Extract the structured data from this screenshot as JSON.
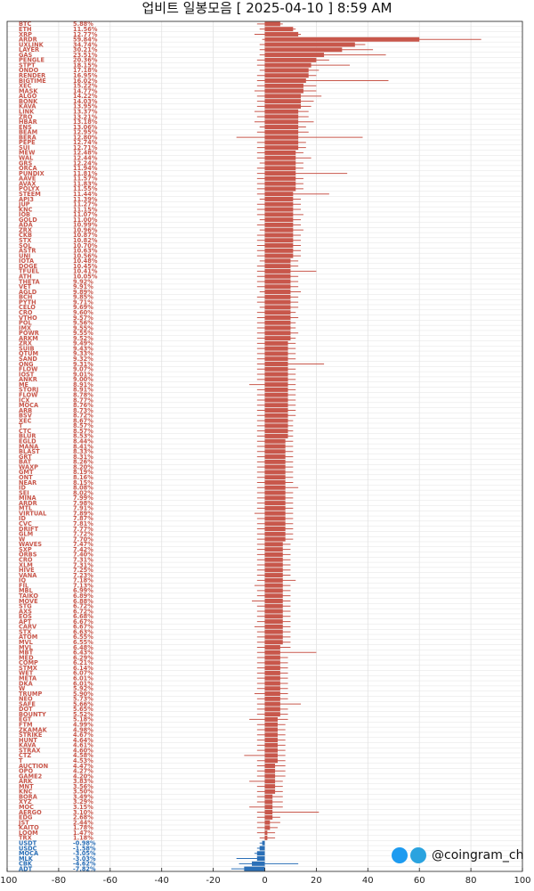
{
  "title": "업비트 일봉모음 [ 2025-04-10 ]  8:59 AM",
  "watermark": {
    "handle": "@coingram_ch",
    "icons": [
      "twitter-icon",
      "telegram-icon"
    ]
  },
  "colors": {
    "positive": "#c8574b",
    "negative": "#2a6fb7",
    "grid": "#e3e3e3",
    "axis": "#222222"
  },
  "chart_data": {
    "type": "bar",
    "orientation": "horizontal",
    "xlim": [
      -100,
      100
    ],
    "xticks": [
      -100,
      -80,
      -60,
      -40,
      -20,
      0,
      20,
      40,
      60,
      80,
      100
    ],
    "grid": true,
    "fields": [
      "symbol",
      "change_label",
      "body_pct",
      "wick_low_pct",
      "wick_high_pct"
    ],
    "rows": [
      [
        "BTC",
        "5.88%",
        6,
        -3,
        7
      ],
      [
        "ETH",
        "11.56%",
        11,
        -2,
        12
      ],
      [
        "XRP",
        "12.77%",
        13,
        -4,
        14
      ],
      [
        "ARDR",
        "59.84%",
        60,
        -1,
        84
      ],
      [
        "UXLINK",
        "34.74%",
        35,
        -2,
        39
      ],
      [
        "LAYER",
        "30.21%",
        30,
        -2,
        42
      ],
      [
        "GAS",
        "23.51%",
        23,
        -2,
        47
      ],
      [
        "PENGLE",
        "20.36%",
        20,
        -3,
        25
      ],
      [
        "STPT",
        "18.15%",
        18,
        -3,
        33
      ],
      [
        "ONDO",
        "17.18%",
        17,
        -2,
        21
      ],
      [
        "RENDER",
        "16.95%",
        17,
        -3,
        20
      ],
      [
        "BIGTIME",
        "16.02%",
        16,
        -3,
        48
      ],
      [
        "XEC",
        "15.22%",
        15,
        -3,
        20
      ],
      [
        "MASK",
        "14.77%",
        15,
        -4,
        20
      ],
      [
        "ALGO",
        "14.22%",
        14,
        -3,
        22
      ],
      [
        "BONK",
        "14.03%",
        14,
        -3,
        19
      ],
      [
        "KAVA",
        "13.95%",
        14,
        -3,
        18
      ],
      [
        "LINK",
        "13.37%",
        13,
        -4,
        17
      ],
      [
        "ZRO",
        "13.21%",
        13,
        -3,
        17
      ],
      [
        "HBAR",
        "13.18%",
        13,
        -4,
        19
      ],
      [
        "ENS",
        "13.06%",
        13,
        -2,
        16
      ],
      [
        "BEAM",
        "12.95%",
        13,
        -3,
        17
      ],
      [
        "BERA",
        "12.80%",
        13,
        -11,
        38
      ],
      [
        "PEPE",
        "12.74%",
        13,
        -3,
        16
      ],
      [
        "SUI",
        "12.71%",
        13,
        -3,
        16
      ],
      [
        "MEW",
        "12.48%",
        12,
        -3,
        15
      ],
      [
        "WAL",
        "12.44%",
        12,
        -3,
        18
      ],
      [
        "GRS",
        "12.24%",
        12,
        -2,
        15
      ],
      [
        "ORCA",
        "11.94%",
        12,
        -3,
        15
      ],
      [
        "PUNDIX",
        "11.81%",
        12,
        -3,
        32
      ],
      [
        "AAVE",
        "11.57%",
        12,
        -3,
        15
      ],
      [
        "AVAX",
        "11.83%",
        12,
        -3,
        15
      ],
      [
        "POLYX",
        "11.55%",
        12,
        -3,
        15
      ],
      [
        "STEEM",
        "11.44%",
        11,
        -3,
        25
      ],
      [
        "API3",
        "11.39%",
        11,
        -2,
        14
      ],
      [
        "JUP",
        "11.27%",
        11,
        -3,
        14
      ],
      [
        "KNC",
        "11.15%",
        11,
        -3,
        14
      ],
      [
        "IOB",
        "11.07%",
        11,
        -3,
        15
      ],
      [
        "GOLD",
        "11.00%",
        11,
        -2,
        14
      ],
      [
        "ADA",
        "10.99%",
        11,
        -3,
        14
      ],
      [
        "ZRX",
        "10.96%",
        11,
        -2,
        15
      ],
      [
        "CKB",
        "10.87%",
        11,
        -3,
        14
      ],
      [
        "STX",
        "10.82%",
        11,
        -3,
        14
      ],
      [
        "SOL",
        "10.70%",
        11,
        -3,
        14
      ],
      [
        "ASTR",
        "10.63%",
        11,
        -3,
        14
      ],
      [
        "UNI",
        "10.56%",
        11,
        -3,
        14
      ],
      [
        "IOTA",
        "10.48%",
        10,
        -2,
        13
      ],
      [
        "DOGE",
        "10.45%",
        10,
        -3,
        13
      ],
      [
        "TFUEL",
        "10.41%",
        10,
        -3,
        20
      ],
      [
        "ATH",
        "10.05%",
        10,
        -3,
        13
      ],
      [
        "THETA",
        "9.92%",
        10,
        -3,
        13
      ],
      [
        "VET",
        "9.91%",
        10,
        -3,
        13
      ],
      [
        "AGLD",
        "9.89%",
        10,
        -2,
        14
      ],
      [
        "BCH",
        "9.85%",
        10,
        -3,
        13
      ],
      [
        "PYTH",
        "9.71%",
        10,
        -3,
        13
      ],
      [
        "CELO",
        "9.69%",
        10,
        -2,
        13
      ],
      [
        "CRO",
        "9.60%",
        10,
        -3,
        12
      ],
      [
        "VTHO",
        "9.57%",
        10,
        -3,
        13
      ],
      [
        "POL",
        "9.56%",
        10,
        -3,
        12
      ],
      [
        "IMX",
        "9.55%",
        10,
        -3,
        12
      ],
      [
        "POWR",
        "9.55%",
        10,
        -3,
        13
      ],
      [
        "ARKM",
        "9.52%",
        10,
        -3,
        12
      ],
      [
        "ZRX",
        "9.49%",
        9,
        -3,
        12
      ],
      [
        "SUIB",
        "9.43%",
        9,
        -3,
        12
      ],
      [
        "QTUM",
        "9.33%",
        9,
        -3,
        12
      ],
      [
        "SAND",
        "9.32%",
        9,
        -3,
        12
      ],
      [
        "ONG",
        "9.31%",
        9,
        -3,
        23
      ],
      [
        "FLOW",
        "9.07%",
        9,
        -3,
        12
      ],
      [
        "IOST",
        "9.01%",
        9,
        -3,
        12
      ],
      [
        "ANKR",
        "9.00%",
        9,
        -3,
        12
      ],
      [
        "ME",
        "8.91%",
        9,
        -6,
        12
      ],
      [
        "STORJ",
        "8.91%",
        9,
        -3,
        12
      ],
      [
        "FLOW",
        "8.78%",
        9,
        -3,
        12
      ],
      [
        "ICX",
        "8.77%",
        9,
        -3,
        12
      ],
      [
        "MOCA",
        "8.76%",
        9,
        -3,
        12
      ],
      [
        "ARB",
        "8.73%",
        9,
        -3,
        12
      ],
      [
        "BSV",
        "8.72%",
        9,
        -3,
        12
      ],
      [
        "XEC",
        "8.67%",
        9,
        -3,
        11
      ],
      [
        "T",
        "8.57%",
        9,
        -3,
        11
      ],
      [
        "CTC",
        "8.57%",
        9,
        -3,
        11
      ],
      [
        "BLUR",
        "8.53%",
        9,
        -3,
        11
      ],
      [
        "EGLD",
        "8.44%",
        8,
        -3,
        11
      ],
      [
        "MANA",
        "8.41%",
        8,
        -3,
        11
      ],
      [
        "BLAST",
        "8.33%",
        8,
        -3,
        11
      ],
      [
        "GRT",
        "8.31%",
        8,
        -3,
        11
      ],
      [
        "BAT",
        "8.26%",
        8,
        -3,
        11
      ],
      [
        "WAXP",
        "8.20%",
        8,
        -3,
        11
      ],
      [
        "GMT",
        "8.19%",
        8,
        -3,
        11
      ],
      [
        "ONT",
        "8.16%",
        8,
        -3,
        11
      ],
      [
        "NEAR",
        "8.15%",
        8,
        -3,
        11
      ],
      [
        "ID",
        "8.08%",
        8,
        -3,
        13
      ],
      [
        "SEI",
        "8.02%",
        8,
        -3,
        11
      ],
      [
        "MINA",
        "7.99%",
        8,
        -3,
        11
      ],
      [
        "ARDR",
        "7.98%",
        8,
        -3,
        11
      ],
      [
        "MTL",
        "7.91%",
        8,
        -3,
        11
      ],
      [
        "VIRTUAL",
        "7.89%",
        8,
        -4,
        11
      ],
      [
        "ID",
        "7.87%",
        8,
        -3,
        11
      ],
      [
        "CVC",
        "7.81%",
        8,
        -3,
        11
      ],
      [
        "DRIFT",
        "7.77%",
        8,
        -3,
        11
      ],
      [
        "GLM",
        "7.72%",
        8,
        -3,
        11
      ],
      [
        "W",
        "7.70%",
        8,
        -3,
        11
      ],
      [
        "WAVES",
        "7.47%",
        7,
        -3,
        10
      ],
      [
        "SXP",
        "7.42%",
        7,
        -3,
        10
      ],
      [
        "ORBS",
        "7.40%",
        7,
        -3,
        10
      ],
      [
        "CRO",
        "7.31%",
        7,
        -3,
        10
      ],
      [
        "XLM",
        "7.31%",
        7,
        -3,
        10
      ],
      [
        "HIVE",
        "7.25%",
        7,
        -3,
        10
      ],
      [
        "VANA",
        "7.23%",
        7,
        -3,
        10
      ],
      [
        "IQ",
        "7.18%",
        7,
        -3,
        12
      ],
      [
        "FIL",
        "7.13%",
        7,
        -4,
        10
      ],
      [
        "MBL",
        "6.99%",
        7,
        -3,
        10
      ],
      [
        "TAIKO",
        "6.89%",
        7,
        -3,
        10
      ],
      [
        "MOVE",
        "6.88%",
        7,
        -5,
        10
      ],
      [
        "STG",
        "6.72%",
        7,
        -3,
        10
      ],
      [
        "AXS",
        "6.72%",
        7,
        -3,
        10
      ],
      [
        "EOS",
        "6.68%",
        7,
        -3,
        10
      ],
      [
        "APT",
        "6.67%",
        7,
        -3,
        10
      ],
      [
        "CARV",
        "6.67%",
        7,
        -4,
        10
      ],
      [
        "STX",
        "6.63%",
        7,
        -3,
        10
      ],
      [
        "ATOM",
        "6.55%",
        7,
        -3,
        10
      ],
      [
        "MVL",
        "6.55%",
        7,
        -3,
        10
      ],
      [
        "MVL",
        "6.48%",
        6,
        -3,
        10
      ],
      [
        "MBT",
        "6.43%",
        6,
        -3,
        20
      ],
      [
        "MED",
        "6.29%",
        6,
        -3,
        9
      ],
      [
        "COMP",
        "6.21%",
        6,
        -3,
        9
      ],
      [
        "STMX",
        "6.14%",
        6,
        -3,
        9
      ],
      [
        "WET",
        "6.07%",
        6,
        -3,
        9
      ],
      [
        "META",
        "6.01%",
        6,
        -3,
        9
      ],
      [
        "DKA",
        "6.01%",
        6,
        -3,
        9
      ],
      [
        "W",
        "5.92%",
        6,
        -3,
        9
      ],
      [
        "TRUMP",
        "5.90%",
        6,
        -4,
        9
      ],
      [
        "NEO",
        "5.73%",
        6,
        -3,
        9
      ],
      [
        "SAFE",
        "5.66%",
        6,
        -3,
        14
      ],
      [
        "DOT",
        "5.65%",
        6,
        -3,
        9
      ],
      [
        "BOUNTY",
        "5.52%",
        6,
        -3,
        9
      ],
      [
        "EGT",
        "5.18%",
        5,
        -6,
        9
      ],
      [
        "FTM",
        "4.99%",
        5,
        -3,
        8
      ],
      [
        "ZKAMAK",
        "4.98%",
        5,
        -3,
        8
      ],
      [
        "STRIKE",
        "4.67%",
        5,
        -3,
        8
      ],
      [
        "HUNT",
        "4.64%",
        5,
        -3,
        8
      ],
      [
        "KAVA",
        "4.61%",
        5,
        -3,
        8
      ],
      [
        "STRAX",
        "4.60%",
        5,
        -3,
        8
      ],
      [
        "CTZ",
        "4.58%",
        5,
        -8,
        8
      ],
      [
        "T",
        "4.53%",
        5,
        -3,
        8
      ],
      [
        "AUCTION",
        "4.47%",
        4,
        -3,
        8
      ],
      [
        "OPO",
        "4.27%",
        4,
        -3,
        8
      ],
      [
        "GAME2",
        "4.20%",
        4,
        -3,
        8
      ],
      [
        "ARK",
        "3.83%",
        4,
        -6,
        7
      ],
      [
        "MNT",
        "3.56%",
        4,
        -3,
        7
      ],
      [
        "KNC",
        "3.50%",
        4,
        -3,
        7
      ],
      [
        "BORA",
        "3.49%",
        3,
        -3,
        7
      ],
      [
        "XYZ",
        "3.29%",
        3,
        -3,
        7
      ],
      [
        "MOC",
        "3.15%",
        3,
        -6,
        7
      ],
      [
        "AERGO",
        "3.10%",
        3,
        -3,
        21
      ],
      [
        "EDG",
        "2.68%",
        3,
        -3,
        6
      ],
      [
        "JST",
        "2.44%",
        2,
        -3,
        6
      ],
      [
        "KAITO",
        "1.78%",
        2,
        -3,
        5
      ],
      [
        "LOOM",
        "1.47%",
        1,
        -3,
        4
      ],
      [
        "TRX",
        "1.18%",
        1,
        -2,
        4
      ],
      [
        "USDT",
        "-0.98%",
        -1,
        -2,
        0
      ],
      [
        "USDC",
        "-1.58%",
        -2,
        -3,
        0
      ],
      [
        "MOCA",
        "-3.05%",
        -3,
        -4,
        0
      ],
      [
        "MLK",
        "-3.03%",
        -3,
        -11,
        0
      ],
      [
        "CBK",
        "-4.62%",
        -5,
        -10,
        13
      ],
      [
        "ADT",
        "-7.82%",
        -8,
        -13,
        0
      ]
    ]
  }
}
